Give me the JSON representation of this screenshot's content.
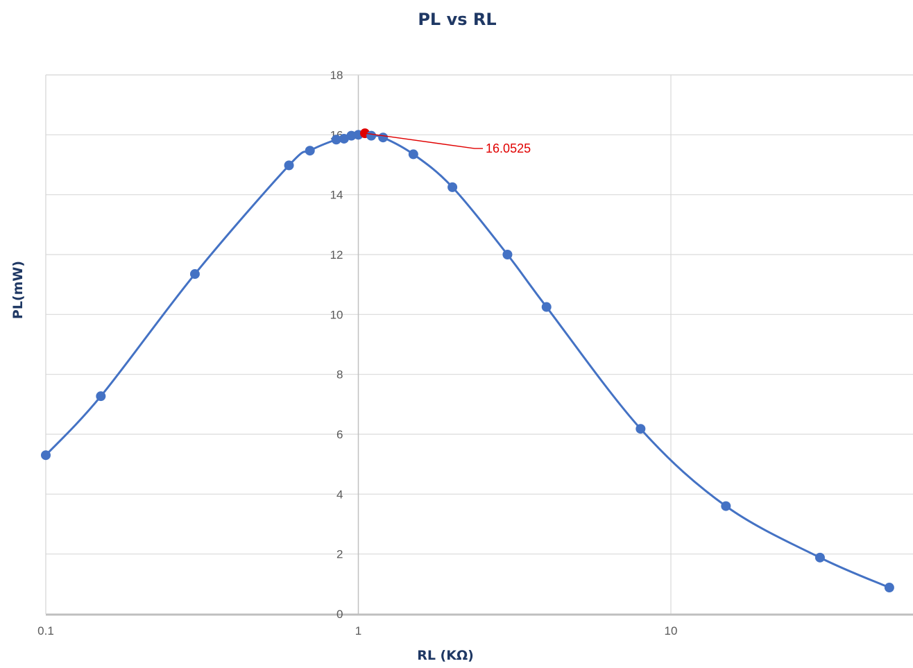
{
  "chart_data": {
    "type": "scatter",
    "title": "PL vs RL",
    "xlabel": "RL (KΩ)",
    "ylabel": "PL(mW)",
    "x_scale": "log",
    "xlim": [
      0.1,
      50
    ],
    "ylim": [
      0,
      18
    ],
    "x_ticks": [
      "0.1",
      "1",
      "10"
    ],
    "y_ticks": [
      "0",
      "2",
      "4",
      "6",
      "8",
      "10",
      "12",
      "14",
      "16",
      "18"
    ],
    "grid": true,
    "legend": "none",
    "series_color": "#4472c4",
    "highlight_color": "#e00000",
    "series": [
      {
        "x": [
          0.1,
          0.15,
          0.3,
          0.6,
          0.7,
          0.85,
          0.9,
          0.95,
          1.0,
          1.05,
          1.1,
          1.2,
          1.5,
          2.0,
          3.0,
          4.0,
          8.0,
          15.0,
          30.0,
          50.0
        ],
        "y": [
          5.3,
          7.27,
          11.35,
          14.98,
          15.47,
          15.84,
          15.87,
          15.97,
          16.0,
          16.05,
          15.97,
          15.91,
          15.35,
          14.25,
          12.0,
          10.25,
          6.18,
          3.6,
          1.88,
          0.88
        ]
      }
    ],
    "annotations": [
      {
        "x": 1.05,
        "y": 16.0525,
        "text": "16.0525"
      }
    ]
  }
}
